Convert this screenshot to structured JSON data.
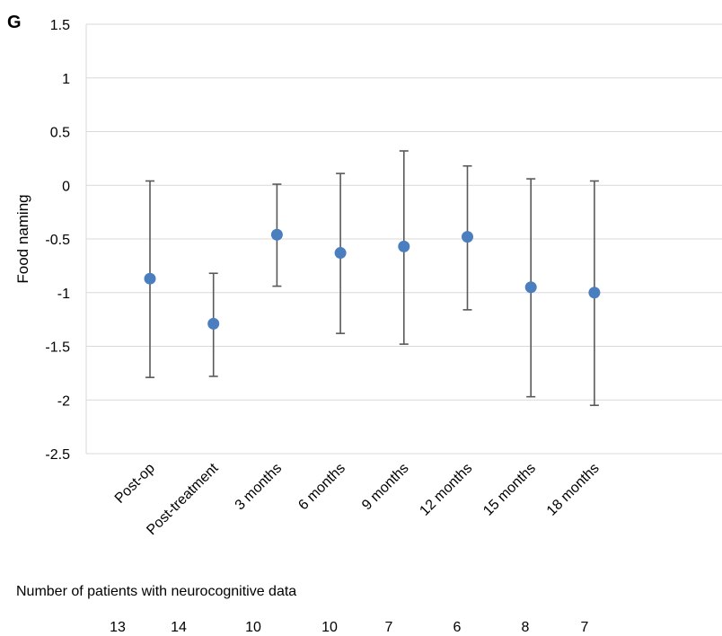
{
  "panel_label": "G",
  "chart_data": {
    "type": "scatter",
    "title": "",
    "xlabel": "",
    "ylabel": "Food naming",
    "ylim": [
      -2.5,
      1.5
    ],
    "yticks": [
      1.5,
      1,
      0.5,
      0,
      -0.5,
      -1,
      -1.5,
      -2,
      -2.5
    ],
    "ytick_labels": [
      "1.5",
      "1",
      "0.5",
      "0",
      "-0.5",
      "-1",
      "-1.5",
      "-2",
      "-2.5"
    ],
    "grid": true,
    "categories": [
      "Post-op",
      "Post-treatment",
      "3 months",
      "6 months",
      "9 months",
      "12 months",
      "15 months",
      "18 months"
    ],
    "values": [
      -0.87,
      -1.29,
      -0.46,
      -0.63,
      -0.57,
      -0.48,
      -0.95,
      -1.0
    ],
    "error_upper": [
      0.04,
      -0.82,
      0.01,
      0.11,
      0.32,
      0.18,
      0.06,
      0.04
    ],
    "error_lower": [
      -1.79,
      -1.78,
      -0.94,
      -1.38,
      -1.48,
      -1.16,
      -1.97,
      -2.05
    ],
    "marker_color": "#4a7ebf",
    "errorbar_color": "#595959",
    "grid_color": "#d9d9d9"
  },
  "footnote": "Number of patients with neurocognitive data",
  "patient_counts": [
    "13",
    "14",
    "10",
    "10",
    "7",
    "6",
    "8",
    "7"
  ]
}
